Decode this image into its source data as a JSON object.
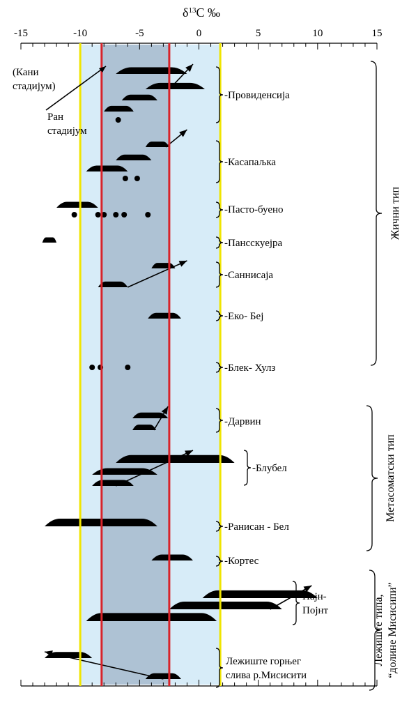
{
  "chart_data": {
    "type": "range",
    "title": "δ13C ‰",
    "x_ticks": [
      -15,
      -10,
      -5,
      0,
      5,
      10,
      15
    ],
    "xlim": [
      -15,
      15
    ],
    "bands": [
      {
        "name": "outer",
        "from": -10,
        "to": 1.8,
        "color": "#d7ecf8"
      },
      {
        "name": "inner",
        "from": -8.2,
        "to": -2.5,
        "color": "#aec2d4"
      }
    ],
    "vlines": [
      {
        "x": -10,
        "color": "#f0e500"
      },
      {
        "x": 1.8,
        "color": "#f0e500"
      },
      {
        "x": -8.2,
        "color": "#d8232a"
      },
      {
        "x": -2.5,
        "color": "#d8232a"
      }
    ],
    "deposits": [
      {
        "label": "Провиденсија",
        "ranges": [
          [
            -7.0,
            -1.0
          ],
          [
            -4.5,
            0.5
          ],
          [
            -6.5,
            -3.5
          ],
          [
            -8.0,
            -5.5
          ]
        ],
        "points": [
          -6.8
        ],
        "arrows": [
          [
            -2.5,
            -0.5
          ]
        ]
      },
      {
        "label": "Касапаљка",
        "ranges": [
          [
            -4.5,
            -2.5
          ],
          [
            -7.0,
            -4.0
          ],
          [
            -9.5,
            -6.0
          ]
        ],
        "points": [
          -6.2,
          -5.2
        ],
        "arrows": [
          [
            -2.8,
            -1.0
          ]
        ]
      },
      {
        "label": "Пасто-буено",
        "ranges": [
          [
            -12.0,
            -8.5
          ]
        ],
        "points": [
          -10.5,
          -8.5,
          -8.0,
          -7.0,
          -6.3,
          -4.3
        ]
      },
      {
        "label": "Пансскуејра",
        "ranges": [
          [
            -13.2,
            -12.0
          ]
        ],
        "points": []
      },
      {
        "label": "Саннисаја",
        "ranges": [
          [
            -4.0,
            -2.0
          ],
          [
            -8.5,
            -6.0
          ]
        ],
        "points": [],
        "arrows": [
          [
            -6.0,
            -1.0
          ]
        ]
      },
      {
        "label": "Еко- Беј",
        "ranges": [
          [
            -4.3,
            -1.5
          ]
        ],
        "points": []
      },
      {
        "label": "Блек- Хулз",
        "ranges": [],
        "points": [
          -9.0,
          -8.3,
          -6.0
        ]
      },
      {
        "label": "Дарвин",
        "ranges": [
          [
            -5.6,
            -2.6
          ],
          [
            -5.6,
            -3.6
          ]
        ],
        "points": [],
        "arrows": [
          [
            -3.8,
            -2.6
          ]
        ]
      },
      {
        "label": "Блубел",
        "ranges": [
          [
            -7.0,
            3.0
          ],
          [
            -9.0,
            -3.5
          ],
          [
            -9.0,
            -5.5
          ]
        ],
        "points": [],
        "arrows": [
          [
            -7.0,
            -0.5
          ]
        ]
      },
      {
        "label": "Ранисан - Бел",
        "ranges": [
          [
            -13.0,
            -3.5
          ]
        ],
        "points": []
      },
      {
        "label": "Кортес",
        "ranges": [
          [
            -4.0,
            -0.5
          ]
        ],
        "points": []
      },
      {
        "label": "Пајн- Појнт",
        "ranges": [
          [
            0.3,
            10.0
          ],
          [
            -2.5,
            7.0
          ],
          [
            -9.5,
            1.5
          ]
        ],
        "points": [],
        "arrows": [
          [
            6.0,
            9.5
          ]
        ]
      },
      {
        "label": "Лежиште горњег слива р.Мисисити",
        "ranges": [
          [
            -13.0,
            -9.0
          ],
          [
            -4.5,
            -1.5
          ]
        ],
        "points": [],
        "arrows": [
          [
            -3.0,
            -13.0
          ]
        ]
      }
    ],
    "groups": [
      "Жични тип",
      "Метасоматски тип",
      "Лежиште типа, “долине Мисисипи”"
    ],
    "annotations": {
      "kani": "(Кани",
      "kani2": "стадијум)",
      "ran": "Ран",
      "ran2": "стадијум"
    }
  }
}
